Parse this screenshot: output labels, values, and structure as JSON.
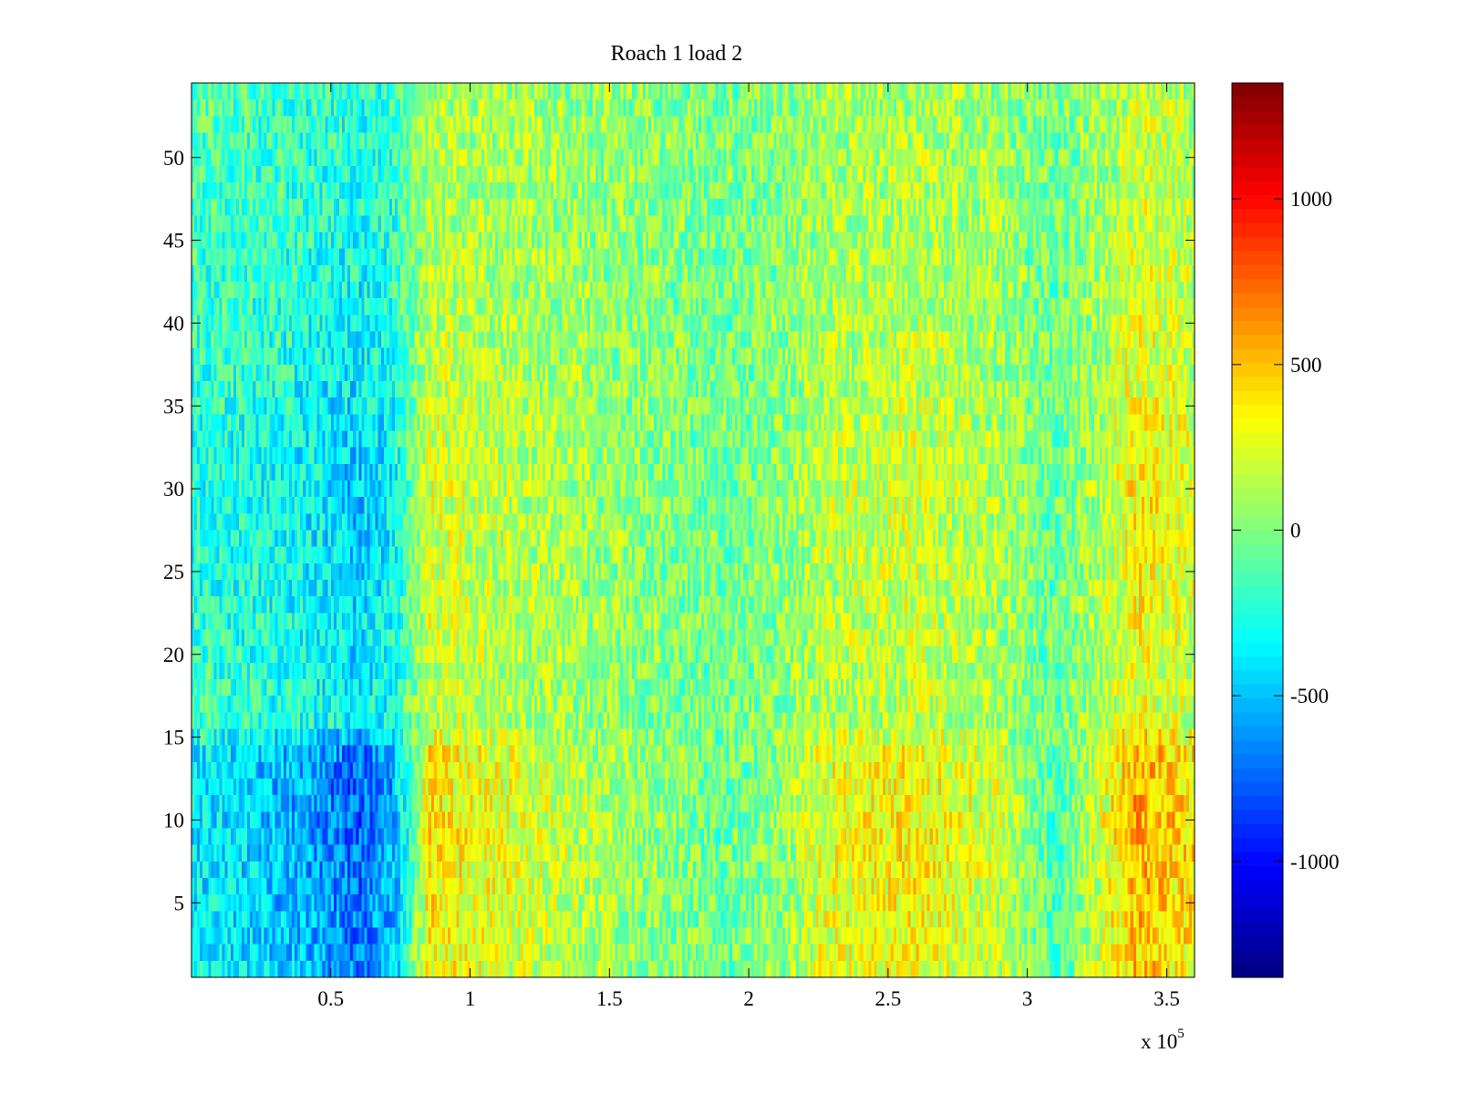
{
  "chart_data": {
    "type": "heatmap",
    "title": "Roach 1 load 2",
    "xlabel": "",
    "ylabel": "",
    "x_multiplier_label": "x 10",
    "x_multiplier_exponent": "5",
    "xlim": [
      0,
      360000
    ],
    "ylim": [
      0.5,
      54.5
    ],
    "x_ticks": [
      {
        "value": 50000,
        "label": "0.5"
      },
      {
        "value": 100000,
        "label": "1"
      },
      {
        "value": 150000,
        "label": "1.5"
      },
      {
        "value": 200000,
        "label": "2"
      },
      {
        "value": 250000,
        "label": "2.5"
      },
      {
        "value": 300000,
        "label": "3"
      },
      {
        "value": 350000,
        "label": "3.5"
      }
    ],
    "y_ticks": [
      {
        "value": 5,
        "label": "5"
      },
      {
        "value": 10,
        "label": "10"
      },
      {
        "value": 15,
        "label": "15"
      },
      {
        "value": 20,
        "label": "20"
      },
      {
        "value": 25,
        "label": "25"
      },
      {
        "value": 30,
        "label": "30"
      },
      {
        "value": 35,
        "label": "35"
      },
      {
        "value": 40,
        "label": "40"
      },
      {
        "value": 45,
        "label": "45"
      },
      {
        "value": 50,
        "label": "50"
      }
    ],
    "rows": 54,
    "colorbar": {
      "colormap": "jet",
      "range": [
        -1350,
        1350
      ],
      "ticks": [
        {
          "value": 1000,
          "label": "1000"
        },
        {
          "value": 500,
          "label": "500"
        },
        {
          "value": 0,
          "label": "0"
        },
        {
          "value": -500,
          "label": "-500"
        },
        {
          "value": -1000,
          "label": "-1000"
        }
      ]
    },
    "column_profile": [
      {
        "x": 0,
        "value": -300
      },
      {
        "x": 20000,
        "value": -350
      },
      {
        "x": 40000,
        "value": -450
      },
      {
        "x": 60000,
        "value": -600
      },
      {
        "x": 72000,
        "value": -450
      },
      {
        "x": 78000,
        "value": -150
      },
      {
        "x": 85000,
        "value": 300
      },
      {
        "x": 100000,
        "value": 250
      },
      {
        "x": 130000,
        "value": 150
      },
      {
        "x": 160000,
        "value": 50
      },
      {
        "x": 190000,
        "value": -50
      },
      {
        "x": 215000,
        "value": 50
      },
      {
        "x": 225000,
        "value": 200
      },
      {
        "x": 260000,
        "value": 280
      },
      {
        "x": 290000,
        "value": 150
      },
      {
        "x": 310000,
        "value": -100
      },
      {
        "x": 325000,
        "value": 150
      },
      {
        "x": 340000,
        "value": 450
      },
      {
        "x": 360000,
        "value": 300
      }
    ],
    "row_profile": [
      {
        "y": 1,
        "value": 1.1
      },
      {
        "y": 10,
        "value": 1.3
      },
      {
        "y": 14,
        "value": 1.2
      },
      {
        "y": 16,
        "value": 0.6
      },
      {
        "y": 30,
        "value": 0.8
      },
      {
        "y": 38,
        "value": 0.6
      },
      {
        "y": 54,
        "value": 0.4
      }
    ],
    "noise_amplitude": 260
  }
}
